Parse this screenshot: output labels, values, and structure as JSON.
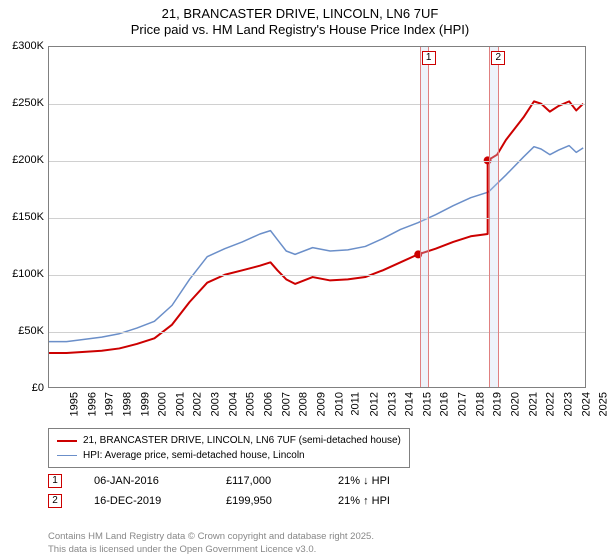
{
  "title": {
    "line1": "21, BRANCASTER DRIVE, LINCOLN, LN6 7UF",
    "line2": "Price paid vs. HM Land Registry's House Price Index (HPI)"
  },
  "chart": {
    "type": "line",
    "background_color": "#ffffff",
    "grid_color": "#d0d0d0",
    "border_color": "#808080",
    "x_years": [
      1995,
      1996,
      1997,
      1998,
      1999,
      2000,
      2001,
      2002,
      2003,
      2004,
      2005,
      2006,
      2007,
      2008,
      2009,
      2010,
      2011,
      2012,
      2013,
      2014,
      2015,
      2016,
      2017,
      2018,
      2019,
      2020,
      2021,
      2022,
      2023,
      2024,
      2025
    ],
    "xlim": [
      1995,
      2025.5
    ],
    "ylim": [
      0,
      300000
    ],
    "ytick_step": 50000,
    "ytick_labels": [
      "£0",
      "£50K",
      "£100K",
      "£150K",
      "£200K",
      "£250K",
      "£300K"
    ],
    "label_fontsize": 11,
    "series": [
      {
        "name": "price_paid",
        "label": "21, BRANCASTER DRIVE, LINCOLN, LN6 7UF (semi-detached house)",
        "color": "#cc0000",
        "line_width": 2,
        "data": [
          [
            1995,
            30000
          ],
          [
            1996,
            30000
          ],
          [
            1997,
            31000
          ],
          [
            1998,
            32000
          ],
          [
            1999,
            34000
          ],
          [
            2000,
            38000
          ],
          [
            2001,
            43000
          ],
          [
            2002,
            55000
          ],
          [
            2003,
            75000
          ],
          [
            2004,
            92000
          ],
          [
            2005,
            99000
          ],
          [
            2006,
            103000
          ],
          [
            2007,
            107000
          ],
          [
            2007.6,
            110000
          ],
          [
            2008,
            103000
          ],
          [
            2008.5,
            95000
          ],
          [
            2009,
            91000
          ],
          [
            2010,
            97000
          ],
          [
            2011,
            94000
          ],
          [
            2012,
            95000
          ],
          [
            2013,
            97000
          ],
          [
            2014,
            103000
          ],
          [
            2015,
            110000
          ],
          [
            2016,
            117000
          ],
          [
            2016.01,
            117000
          ],
          [
            2017,
            122000
          ],
          [
            2018,
            128000
          ],
          [
            2019,
            133000
          ],
          [
            2019.96,
            135000
          ],
          [
            2019.961,
            199950
          ],
          [
            2020.5,
            205000
          ],
          [
            2021,
            218000
          ],
          [
            2022,
            238000
          ],
          [
            2022.6,
            252000
          ],
          [
            2023,
            250000
          ],
          [
            2023.5,
            243000
          ],
          [
            2024,
            248000
          ],
          [
            2024.6,
            252000
          ],
          [
            2025,
            244000
          ],
          [
            2025.4,
            250000
          ]
        ]
      },
      {
        "name": "hpi",
        "label": "HPI: Average price, semi-detached house, Lincoln",
        "color": "#6b8fc9",
        "line_width": 1.5,
        "data": [
          [
            1995,
            40000
          ],
          [
            1996,
            40000
          ],
          [
            1997,
            42000
          ],
          [
            1998,
            44000
          ],
          [
            1999,
            47000
          ],
          [
            2000,
            52000
          ],
          [
            2001,
            58000
          ],
          [
            2002,
            72000
          ],
          [
            2003,
            95000
          ],
          [
            2004,
            115000
          ],
          [
            2005,
            122000
          ],
          [
            2006,
            128000
          ],
          [
            2007,
            135000
          ],
          [
            2007.6,
            138000
          ],
          [
            2008,
            130000
          ],
          [
            2008.5,
            120000
          ],
          [
            2009,
            117000
          ],
          [
            2010,
            123000
          ],
          [
            2011,
            120000
          ],
          [
            2012,
            121000
          ],
          [
            2013,
            124000
          ],
          [
            2014,
            131000
          ],
          [
            2015,
            139000
          ],
          [
            2016,
            145000
          ],
          [
            2017,
            152000
          ],
          [
            2018,
            160000
          ],
          [
            2019,
            167000
          ],
          [
            2020,
            172000
          ],
          [
            2021,
            187000
          ],
          [
            2022,
            203000
          ],
          [
            2022.6,
            212000
          ],
          [
            2023,
            210000
          ],
          [
            2023.5,
            205000
          ],
          [
            2024,
            209000
          ],
          [
            2024.6,
            213000
          ],
          [
            2025,
            207000
          ],
          [
            2025.4,
            211000
          ]
        ]
      }
    ],
    "sale_points": [
      {
        "x": 2016.01,
        "y": 117000
      },
      {
        "x": 2019.96,
        "y": 199950
      }
    ],
    "event_bands": [
      {
        "label": "1",
        "x": 2016.01,
        "width_years": 0.55
      },
      {
        "label": "2",
        "x": 2019.96,
        "width_years": 0.55
      }
    ]
  },
  "legend": {
    "border_color": "#808080",
    "fontsize": 10
  },
  "events": [
    {
      "n": "1",
      "date": "06-JAN-2016",
      "price": "£117,000",
      "delta": "21% ↓ HPI"
    },
    {
      "n": "2",
      "date": "16-DEC-2019",
      "price": "£199,950",
      "delta": "21% ↑ HPI"
    }
  ],
  "footer": {
    "line1": "Contains HM Land Registry data © Crown copyright and database right 2025.",
    "line2": "This data is licensed under the Open Government Licence v3.0."
  }
}
